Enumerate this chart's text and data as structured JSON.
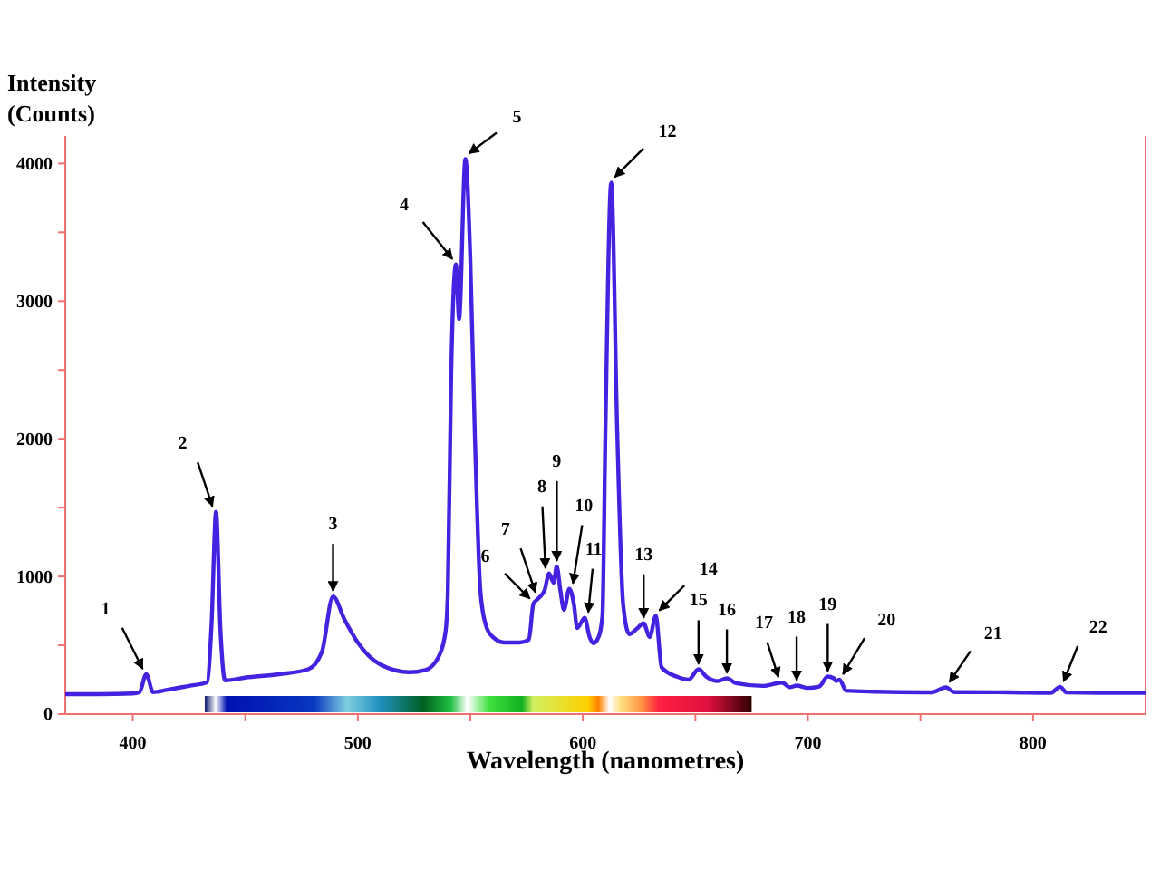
{
  "chart_data": {
    "type": "line",
    "xlabel": "Wavelength (nanometres)",
    "ylabel": "Intensity (Counts)",
    "xlim": [
      370,
      850
    ],
    "ylim": [
      0,
      4200
    ],
    "xticks": [
      400,
      {
        "value": 450,
        "label": null
      },
      500,
      {
        "value": 550,
        "label": null
      },
      600,
      {
        "value": 650,
        "label": null
      },
      700,
      {
        "value": 750,
        "label": null
      },
      800
    ],
    "yticks": [
      0,
      {
        "value": 500,
        "label": null
      },
      1000,
      {
        "value": 1500,
        "label": null
      },
      2000,
      {
        "value": 2500,
        "label": null
      },
      3000,
      {
        "value": 3500,
        "label": null
      },
      4000
    ],
    "grid": false,
    "marker": "none",
    "line_style": "solid",
    "series": [
      {
        "color": "#4422e0",
        "x": [
          370,
          385,
          400,
          403,
          406,
          409,
          415,
          425,
          433,
          435,
          437,
          439,
          441,
          450,
          465,
          478,
          484,
          489,
          494,
          500,
          510,
          523,
          530,
          536,
          539,
          540,
          541.5,
          543.6,
          545,
          547.8,
          550,
          552,
          554.5,
          557,
          560,
          565,
          572,
          576,
          578,
          580.5,
          583,
          585,
          587,
          588.4,
          590,
          591.6,
          594,
          596,
          597.5,
          600.8,
          603,
          604.7,
          607,
          608.7,
          610,
          612.6,
          615.3,
          617.9,
          620.6,
          624,
          627,
          629.7,
          632.4,
          635,
          641.6,
          647,
          651.4,
          655,
          660,
          664,
          668,
          680,
          688.5,
          692,
          695,
          700,
          705,
          708.8,
          711.5,
          712.5,
          714,
          717,
          730,
          755,
          761.3,
          765,
          790,
          808,
          812,
          815,
          830,
          850
        ],
        "values": [
          145,
          145,
          150,
          160,
          290,
          160,
          175,
          205,
          230,
          650,
          1470,
          600,
          245,
          265,
          290,
          326,
          450,
          855,
          690,
          520,
          360,
          304,
          320,
          420,
          600,
          889,
          2474,
          3267,
          2870,
          4033,
          3300,
          2034,
          889,
          640,
          560,
          520,
          520,
          540,
          800,
          845,
          900,
          1022,
          955,
          1074,
          900,
          757,
          911,
          800,
          625,
          700,
          560,
          515,
          560,
          713,
          2030,
          3862,
          2034,
          800,
          581,
          620,
          660,
          560,
          713,
          339,
          273,
          250,
          326,
          270,
          240,
          260,
          225,
          205,
          229,
          195,
          207,
          190,
          200,
          273,
          260,
          240,
          251,
          170,
          163,
          158,
          194,
          160,
          158,
          155,
          198,
          157,
          155,
          155
        ]
      }
    ],
    "annotations": [
      {
        "text": "1",
        "x": 406,
        "y": 290
      },
      {
        "text": "2",
        "x": 437,
        "y": 1470
      },
      {
        "text": "3",
        "x": 489,
        "y": 855
      },
      {
        "text": "4",
        "x": 543.6,
        "y": 3267
      },
      {
        "text": "5",
        "x": 547.8,
        "y": 4033
      },
      {
        "text": "6",
        "x": 578,
        "y": 800
      },
      {
        "text": "7",
        "x": 580.5,
        "y": 845
      },
      {
        "text": "8",
        "x": 585,
        "y": 1022
      },
      {
        "text": "9",
        "x": 588.4,
        "y": 1074
      },
      {
        "text": "10",
        "x": 594,
        "y": 911
      },
      {
        "text": "11",
        "x": 600.8,
        "y": 700
      },
      {
        "text": "12",
        "x": 612.6,
        "y": 3862
      },
      {
        "text": "13",
        "x": 627,
        "y": 660
      },
      {
        "text": "14",
        "x": 632.4,
        "y": 713
      },
      {
        "text": "15",
        "x": 651.4,
        "y": 326
      },
      {
        "text": "16",
        "x": 664,
        "y": 260
      },
      {
        "text": "17",
        "x": 688.5,
        "y": 229
      },
      {
        "text": "18",
        "x": 695,
        "y": 207
      },
      {
        "text": "19",
        "x": 708.8,
        "y": 273
      },
      {
        "text": "20",
        "x": 714,
        "y": 251
      },
      {
        "text": "21",
        "x": 761.3,
        "y": 194
      },
      {
        "text": "22",
        "x": 812,
        "y": 198
      }
    ]
  }
}
